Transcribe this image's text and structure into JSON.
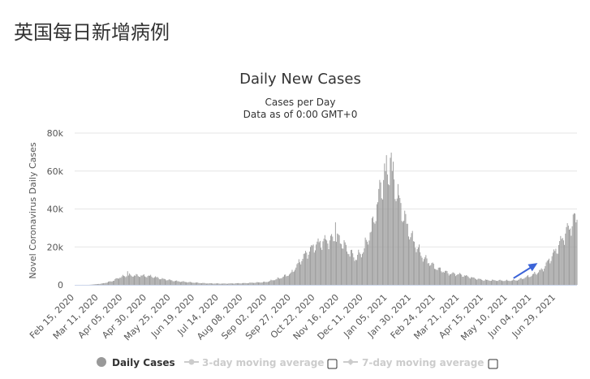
{
  "page": {
    "heading": "英国每日新增病例"
  },
  "chart_data": {
    "type": "bar",
    "title": "Daily New Cases",
    "subtitle_lines": [
      "Cases per Day",
      "Data as of 0:00 GMT+0"
    ],
    "ylabel": "Novel Coronavirus Daily Cases",
    "ylim": [
      0,
      80000
    ],
    "y_ticks": [
      {
        "value": 0,
        "label": "0"
      },
      {
        "value": 20000,
        "label": "20k"
      },
      {
        "value": 40000,
        "label": "40k"
      },
      {
        "value": 60000,
        "label": "60k"
      },
      {
        "value": 80000,
        "label": "80k"
      }
    ],
    "x_start": "2020-02-15",
    "x_end": "2021-07-21",
    "x_tick_labels": [
      {
        "date": "2020-02-15",
        "label": "Feb 15, 2020"
      },
      {
        "date": "2020-03-11",
        "label": "Mar 11, 2020"
      },
      {
        "date": "2020-04-05",
        "label": "Apr 05, 2020"
      },
      {
        "date": "2020-04-30",
        "label": "Apr 30, 2020"
      },
      {
        "date": "2020-05-25",
        "label": "May 25, 2020"
      },
      {
        "date": "2020-06-19",
        "label": "Jun 19, 2020"
      },
      {
        "date": "2020-07-14",
        "label": "Jul 14, 2020"
      },
      {
        "date": "2020-08-08",
        "label": "Aug 08, 2020"
      },
      {
        "date": "2020-09-02",
        "label": "Sep 02, 2020"
      },
      {
        "date": "2020-09-27",
        "label": "Sep 27, 2020"
      },
      {
        "date": "2020-10-22",
        "label": "Oct 22, 2020"
      },
      {
        "date": "2020-11-16",
        "label": "Nov 16, 2020"
      },
      {
        "date": "2020-12-11",
        "label": "Dec 11, 2020"
      },
      {
        "date": "2021-01-05",
        "label": "Jan 05, 2021"
      },
      {
        "date": "2021-01-30",
        "label": "Jan 30, 2021"
      },
      {
        "date": "2021-02-24",
        "label": "Feb 24, 2021"
      },
      {
        "date": "2021-03-21",
        "label": "Mar 21, 2021"
      },
      {
        "date": "2021-04-15",
        "label": "Apr 15, 2021"
      },
      {
        "date": "2021-05-10",
        "label": "May 10, 2021"
      },
      {
        "date": "2021-06-04",
        "label": "Jun 04, 2021"
      },
      {
        "date": "2021-06-29",
        "label": "Jun 29, 2021"
      }
    ],
    "daily_cases_keypoints": [
      {
        "date": "2020-02-15",
        "value": 0
      },
      {
        "date": "2020-03-01",
        "value": 20
      },
      {
        "date": "2020-03-15",
        "value": 700
      },
      {
        "date": "2020-03-25",
        "value": 2000
      },
      {
        "date": "2020-04-02",
        "value": 4000
      },
      {
        "date": "2020-04-10",
        "value": 5000
      },
      {
        "date": "2020-04-25",
        "value": 4800
      },
      {
        "date": "2020-05-05",
        "value": 4500
      },
      {
        "date": "2020-05-15",
        "value": 3200
      },
      {
        "date": "2020-05-30",
        "value": 2000
      },
      {
        "date": "2020-06-15",
        "value": 1300
      },
      {
        "date": "2020-07-01",
        "value": 800
      },
      {
        "date": "2020-07-20",
        "value": 650
      },
      {
        "date": "2020-08-10",
        "value": 900
      },
      {
        "date": "2020-09-01",
        "value": 1500
      },
      {
        "date": "2020-09-15",
        "value": 3500
      },
      {
        "date": "2020-09-27",
        "value": 6000
      },
      {
        "date": "2020-10-10",
        "value": 15000
      },
      {
        "date": "2020-10-22",
        "value": 21000
      },
      {
        "date": "2020-11-01",
        "value": 23000
      },
      {
        "date": "2020-11-10",
        "value": 24000
      },
      {
        "date": "2020-11-16",
        "value": 24000
      },
      {
        "date": "2020-11-25",
        "value": 18000
      },
      {
        "date": "2020-12-03",
        "value": 14000
      },
      {
        "date": "2020-12-11",
        "value": 18000
      },
      {
        "date": "2020-12-20",
        "value": 30000
      },
      {
        "date": "2020-12-29",
        "value": 50000
      },
      {
        "date": "2021-01-05",
        "value": 60000
      },
      {
        "date": "2021-01-09",
        "value": 62000
      },
      {
        "date": "2021-01-15",
        "value": 48000
      },
      {
        "date": "2021-01-22",
        "value": 36000
      },
      {
        "date": "2021-01-30",
        "value": 25000
      },
      {
        "date": "2021-02-10",
        "value": 15000
      },
      {
        "date": "2021-02-24",
        "value": 9000
      },
      {
        "date": "2021-03-10",
        "value": 6000
      },
      {
        "date": "2021-03-21",
        "value": 5500
      },
      {
        "date": "2021-04-05",
        "value": 3500
      },
      {
        "date": "2021-04-15",
        "value": 2500
      },
      {
        "date": "2021-05-10",
        "value": 2200
      },
      {
        "date": "2021-05-20",
        "value": 2500
      },
      {
        "date": "2021-06-04",
        "value": 5000
      },
      {
        "date": "2021-06-15",
        "value": 8000
      },
      {
        "date": "2021-06-29",
        "value": 18000
      },
      {
        "date": "2021-07-10",
        "value": 28000
      },
      {
        "date": "2021-07-21",
        "value": 36000
      }
    ],
    "spikes": [
      {
        "date": "2020-04-10",
        "value": 7200
      },
      {
        "date": "2020-11-12",
        "value": 33000
      },
      {
        "date": "2020-12-29",
        "value": 54000
      },
      {
        "date": "2021-01-02",
        "value": 64000
      },
      {
        "date": "2021-01-08",
        "value": 67000
      },
      {
        "date": "2021-01-10",
        "value": 60000
      }
    ],
    "annotation": {
      "type": "arrow",
      "color": "#3c64d8",
      "from_date": "2021-05-16",
      "from_value": 3500,
      "to_date": "2021-06-10",
      "to_value": 11500
    },
    "legend": {
      "placement": "bottom",
      "items": [
        {
          "label": "Daily Cases",
          "color": "#999999",
          "active": true,
          "marker": "circle",
          "checkbox": false
        },
        {
          "label": "3-day moving average",
          "color": "#cccccc",
          "active": false,
          "marker": "line-circle",
          "checkbox": true
        },
        {
          "label": "7-day moving average",
          "color": "#cccccc",
          "active": false,
          "marker": "line-diamond",
          "checkbox": true
        }
      ]
    },
    "colors": {
      "bar": "#999999",
      "grid": "#e6e6e6",
      "axis": "#ccd6eb",
      "legend_active": "#333333",
      "legend_inactive": "#cccccc"
    },
    "grid": true
  }
}
